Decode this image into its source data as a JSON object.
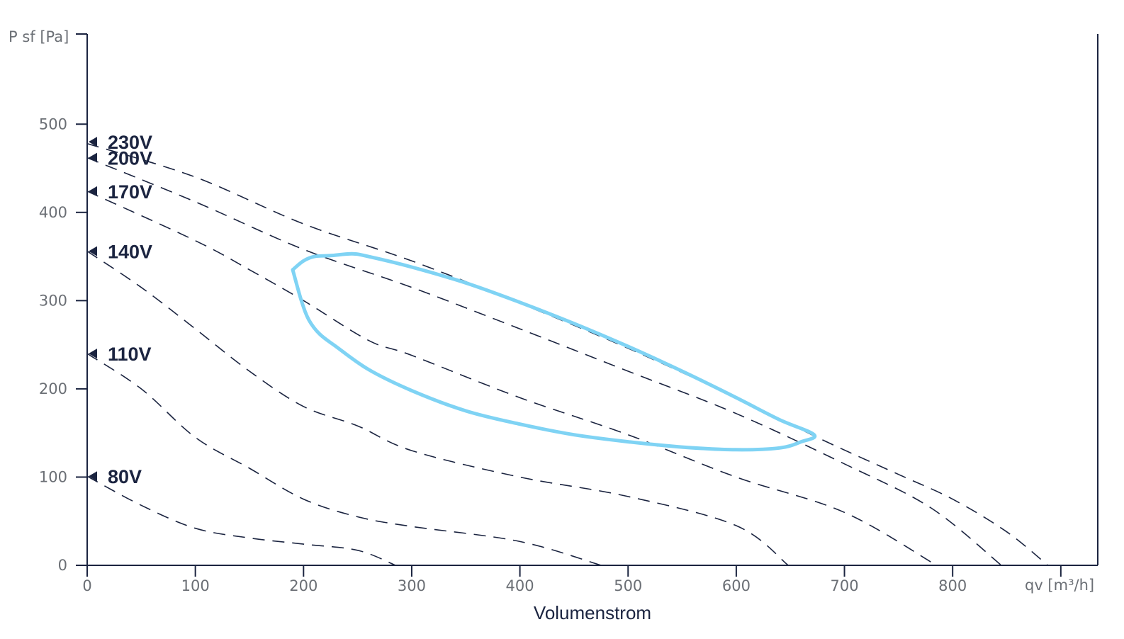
{
  "chart_data": {
    "type": "line",
    "ylabel": "P sf [Pa]",
    "xunit_label": "qv [m³/h]",
    "xlabel": "Volumenstrom",
    "xlim": [
      0,
      900
    ],
    "ylim": [
      0,
      600
    ],
    "xticks": [
      "0",
      "100",
      "200",
      "300",
      "400",
      "500",
      "600",
      "700",
      "800"
    ],
    "yticks": [
      "0",
      "100",
      "200",
      "300",
      "400",
      "500"
    ],
    "colors": {
      "curves": "#1b2440",
      "envelope": "#7fd3f4",
      "axis": "#1b2440",
      "tick_text": "#6b6f75"
    },
    "series": [
      {
        "name": "230V",
        "label_y": 480,
        "points": [
          [
            0,
            478
          ],
          [
            100,
            440
          ],
          [
            200,
            387
          ],
          [
            300,
            345
          ],
          [
            400,
            297
          ],
          [
            500,
            246
          ],
          [
            600,
            190
          ],
          [
            680,
            142
          ],
          [
            750,
            103
          ],
          [
            800,
            75
          ],
          [
            850,
            38
          ],
          [
            888,
            0
          ]
        ]
      },
      {
        "name": "200V",
        "label_y": 462,
        "points": [
          [
            0,
            462
          ],
          [
            100,
            412
          ],
          [
            200,
            358
          ],
          [
            300,
            315
          ],
          [
            400,
            268
          ],
          [
            500,
            220
          ],
          [
            600,
            172
          ],
          [
            700,
            115
          ],
          [
            780,
            65
          ],
          [
            845,
            0
          ]
        ]
      },
      {
        "name": "170V",
        "label_y": 424,
        "points": [
          [
            0,
            424
          ],
          [
            100,
            368
          ],
          [
            150,
            335
          ],
          [
            200,
            300
          ],
          [
            260,
            255
          ],
          [
            300,
            238
          ],
          [
            400,
            190
          ],
          [
            500,
            148
          ],
          [
            600,
            100
          ],
          [
            700,
            60
          ],
          [
            785,
            0
          ]
        ]
      },
      {
        "name": "140V",
        "label_y": 356,
        "points": [
          [
            0,
            356
          ],
          [
            50,
            315
          ],
          [
            100,
            268
          ],
          [
            150,
            220
          ],
          [
            200,
            180
          ],
          [
            250,
            158
          ],
          [
            300,
            130
          ],
          [
            400,
            100
          ],
          [
            500,
            78
          ],
          [
            600,
            45
          ],
          [
            648,
            0
          ]
        ]
      },
      {
        "name": "110V",
        "label_y": 240,
        "points": [
          [
            0,
            240
          ],
          [
            50,
            200
          ],
          [
            100,
            145
          ],
          [
            150,
            110
          ],
          [
            200,
            75
          ],
          [
            250,
            55
          ],
          [
            300,
            44
          ],
          [
            400,
            27
          ],
          [
            475,
            0
          ]
        ]
      },
      {
        "name": "80V",
        "label_y": 101,
        "points": [
          [
            0,
            101
          ],
          [
            50,
            68
          ],
          [
            100,
            42
          ],
          [
            150,
            31
          ],
          [
            200,
            24
          ],
          [
            250,
            17
          ],
          [
            285,
            0
          ]
        ]
      }
    ],
    "envelope": [
      [
        190,
        335
      ],
      [
        200,
        345
      ],
      [
        210,
        350
      ],
      [
        225,
        351
      ],
      [
        245,
        353
      ],
      [
        260,
        350
      ],
      [
        300,
        338
      ],
      [
        350,
        320
      ],
      [
        400,
        298
      ],
      [
        450,
        274
      ],
      [
        500,
        248
      ],
      [
        550,
        220
      ],
      [
        600,
        190
      ],
      [
        640,
        165
      ],
      [
        672,
        148
      ],
      [
        660,
        140
      ],
      [
        640,
        133
      ],
      [
        600,
        131
      ],
      [
        550,
        134
      ],
      [
        500,
        140
      ],
      [
        450,
        148
      ],
      [
        400,
        160
      ],
      [
        350,
        175
      ],
      [
        300,
        198
      ],
      [
        260,
        222
      ],
      [
        230,
        248
      ],
      [
        215,
        262
      ],
      [
        205,
        278
      ],
      [
        198,
        300
      ],
      [
        190,
        335
      ]
    ]
  }
}
